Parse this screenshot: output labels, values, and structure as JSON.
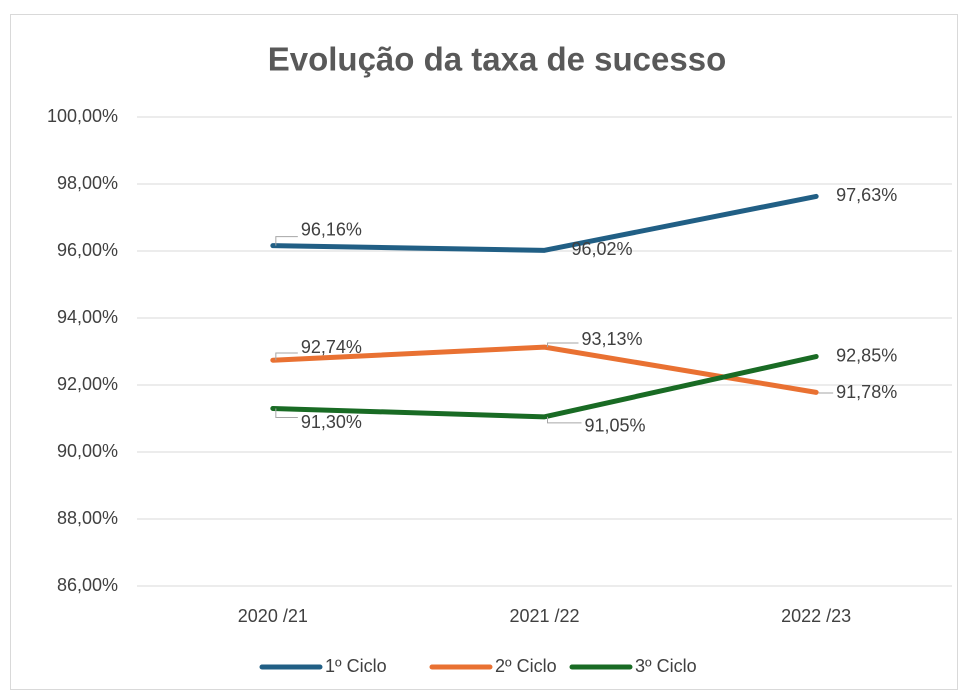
{
  "chart_data": {
    "type": "line",
    "title": "Evolução da taxa de sucesso",
    "categories": [
      "2020 /21",
      "2021 /22",
      "2022 /23"
    ],
    "series": [
      {
        "name": "1º Ciclo",
        "color": "#215f85",
        "values": [
          96.16,
          96.02,
          97.63
        ],
        "value_labels": [
          "96,16%",
          "96,02%",
          "97,63%"
        ]
      },
      {
        "name": "2º Ciclo",
        "color": "#e97132",
        "values": [
          92.74,
          93.13,
          91.78
        ],
        "value_labels": [
          "92,74%",
          "93,13%",
          "91,78%"
        ]
      },
      {
        "name": "3º Ciclo",
        "color": "#196b24",
        "values": [
          91.3,
          91.05,
          92.85
        ],
        "value_labels": [
          "91,30%",
          "91,05%",
          "92,85%"
        ]
      }
    ],
    "ylim": [
      86,
      100
    ],
    "yticks": [
      {
        "value": 86,
        "label": "86,00%"
      },
      {
        "value": 88,
        "label": "88,00%"
      },
      {
        "value": 90,
        "label": "90,00%"
      },
      {
        "value": 92,
        "label": "92,00%"
      },
      {
        "value": 94,
        "label": "94,00%"
      },
      {
        "value": 96,
        "label": "96,00%"
      },
      {
        "value": 98,
        "label": "98,00%"
      },
      {
        "value": 100,
        "label": "100,00%"
      }
    ],
    "grid": true,
    "legend": "bottom"
  }
}
